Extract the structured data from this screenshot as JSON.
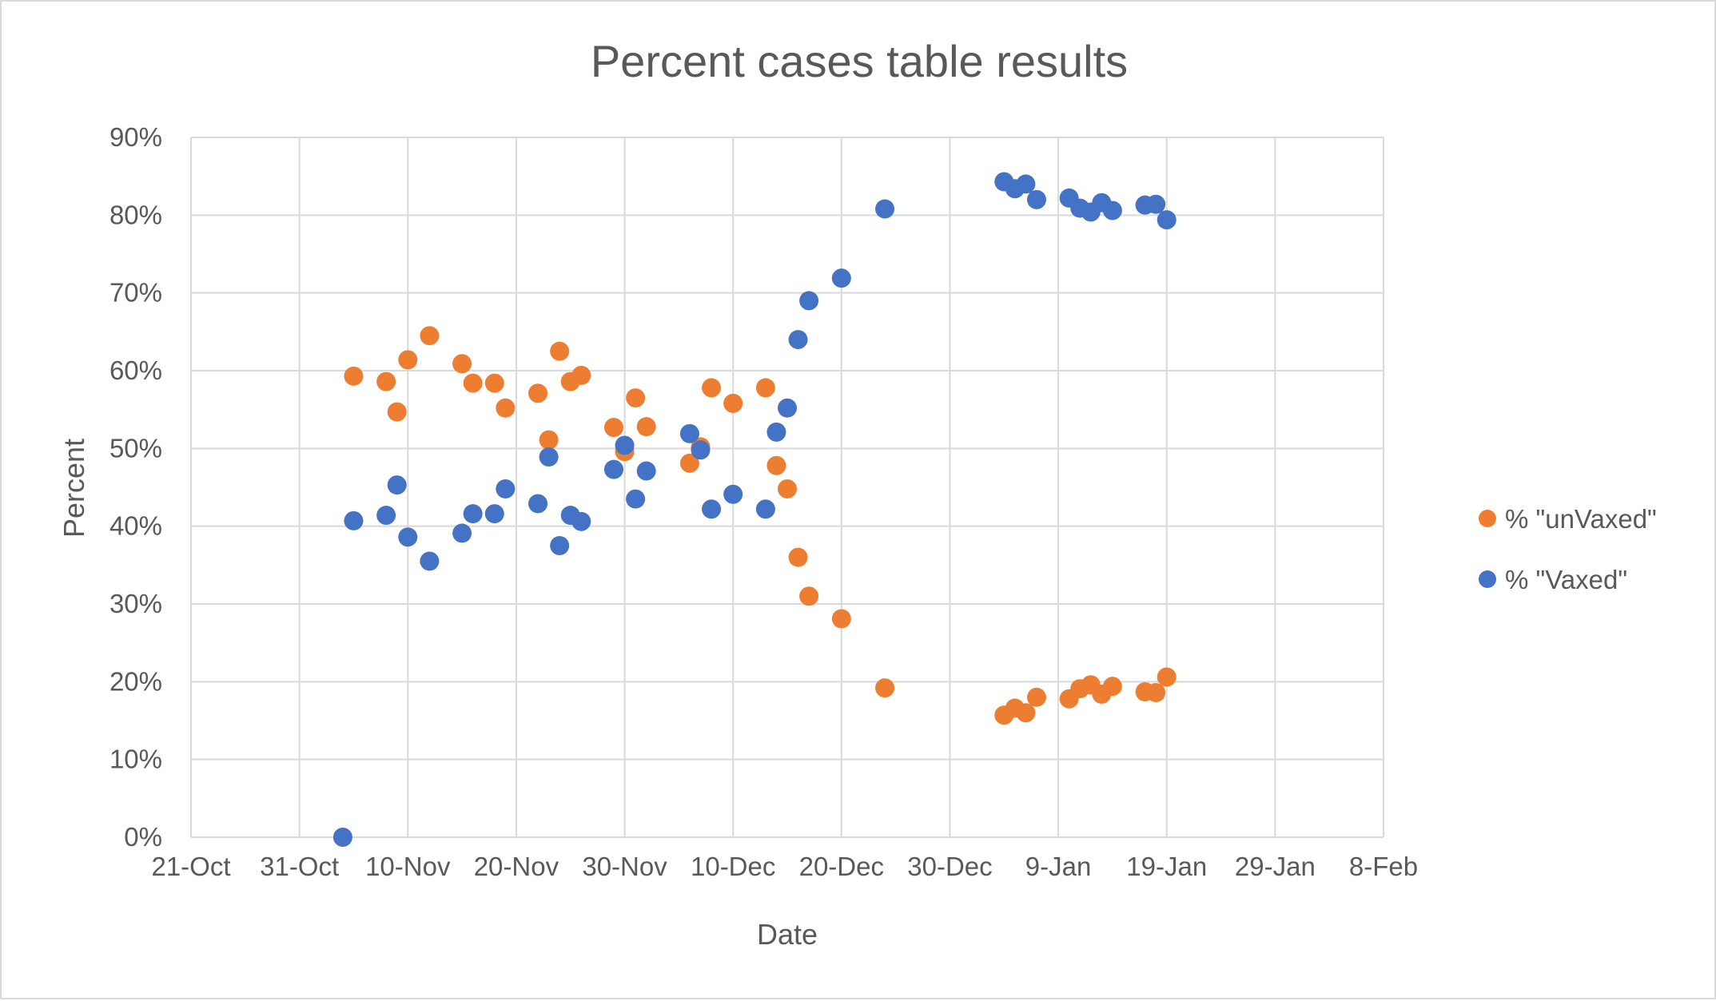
{
  "chart_data": {
    "type": "scatter",
    "title": "Percent cases table results",
    "xlabel": "Date",
    "ylabel": "Percent",
    "x_axis": {
      "kind": "date",
      "min": "2021-10-21",
      "max": "2022-02-08",
      "major_unit_days": 10,
      "tick_labels": [
        "21-Oct",
        "31-Oct",
        "10-Nov",
        "20-Nov",
        "30-Nov",
        "10-Dec",
        "20-Dec",
        "30-Dec",
        "9-Jan",
        "19-Jan",
        "29-Jan",
        "8-Feb"
      ]
    },
    "y_axis": {
      "min": 0,
      "max": 90,
      "major_unit": 10,
      "tick_labels": [
        "0%",
        "10%",
        "20%",
        "30%",
        "40%",
        "50%",
        "60%",
        "70%",
        "80%",
        "90%"
      ]
    },
    "grid": true,
    "legend_position": "right",
    "series": [
      {
        "name": "% \"unVaxed\"",
        "color": "#ED7D31",
        "points": [
          [
            "2021-11-05",
            59.3
          ],
          [
            "2021-11-08",
            58.6
          ],
          [
            "2021-11-09",
            54.7
          ],
          [
            "2021-11-10",
            61.4
          ],
          [
            "2021-11-12",
            64.5
          ],
          [
            "2021-11-15",
            60.9
          ],
          [
            "2021-11-16",
            58.4
          ],
          [
            "2021-11-18",
            58.4
          ],
          [
            "2021-11-19",
            55.2
          ],
          [
            "2021-11-22",
            57.1
          ],
          [
            "2021-11-23",
            51.1
          ],
          [
            "2021-11-24",
            62.5
          ],
          [
            "2021-11-25",
            58.6
          ],
          [
            "2021-11-26",
            59.4
          ],
          [
            "2021-11-29",
            52.7
          ],
          [
            "2021-11-30",
            49.6
          ],
          [
            "2021-12-01",
            56.5
          ],
          [
            "2021-12-02",
            52.8
          ],
          [
            "2021-12-06",
            48.1
          ],
          [
            "2021-12-07",
            50.2
          ],
          [
            "2021-12-08",
            57.8
          ],
          [
            "2021-12-10",
            55.8
          ],
          [
            "2021-12-13",
            57.8
          ],
          [
            "2021-12-14",
            47.8
          ],
          [
            "2021-12-15",
            44.8
          ],
          [
            "2021-12-16",
            36.0
          ],
          [
            "2021-12-17",
            31.0
          ],
          [
            "2021-12-20",
            28.1
          ],
          [
            "2021-12-24",
            19.2
          ],
          [
            "2022-01-04",
            15.7
          ],
          [
            "2022-01-05",
            16.6
          ],
          [
            "2022-01-06",
            16.0
          ],
          [
            "2022-01-07",
            18.0
          ],
          [
            "2022-01-10",
            17.8
          ],
          [
            "2022-01-11",
            19.1
          ],
          [
            "2022-01-12",
            19.6
          ],
          [
            "2022-01-13",
            18.4
          ],
          [
            "2022-01-14",
            19.4
          ],
          [
            "2022-01-17",
            18.7
          ],
          [
            "2022-01-18",
            18.6
          ],
          [
            "2022-01-19",
            20.6
          ]
        ]
      },
      {
        "name": "% \"Vaxed\"",
        "color": "#4472C4",
        "points": [
          [
            "2021-11-04",
            0.0
          ],
          [
            "2021-11-05",
            40.7
          ],
          [
            "2021-11-08",
            41.4
          ],
          [
            "2021-11-09",
            45.3
          ],
          [
            "2021-11-10",
            38.6
          ],
          [
            "2021-11-12",
            35.5
          ],
          [
            "2021-11-15",
            39.1
          ],
          [
            "2021-11-16",
            41.6
          ],
          [
            "2021-11-18",
            41.6
          ],
          [
            "2021-11-19",
            44.8
          ],
          [
            "2021-11-22",
            42.9
          ],
          [
            "2021-11-23",
            48.9
          ],
          [
            "2021-11-24",
            37.5
          ],
          [
            "2021-11-25",
            41.4
          ],
          [
            "2021-11-26",
            40.6
          ],
          [
            "2021-11-29",
            47.3
          ],
          [
            "2021-11-30",
            50.4
          ],
          [
            "2021-12-01",
            43.5
          ],
          [
            "2021-12-02",
            47.1
          ],
          [
            "2021-12-06",
            51.9
          ],
          [
            "2021-12-07",
            49.8
          ],
          [
            "2021-12-08",
            42.2
          ],
          [
            "2021-12-10",
            44.1
          ],
          [
            "2021-12-13",
            42.2
          ],
          [
            "2021-12-14",
            52.1
          ],
          [
            "2021-12-15",
            55.2
          ],
          [
            "2021-12-16",
            64.0
          ],
          [
            "2021-12-17",
            69.0
          ],
          [
            "2021-12-20",
            71.9
          ],
          [
            "2021-12-24",
            80.8
          ],
          [
            "2022-01-04",
            84.3
          ],
          [
            "2022-01-05",
            83.4
          ],
          [
            "2022-01-06",
            84.0
          ],
          [
            "2022-01-07",
            82.0
          ],
          [
            "2022-01-10",
            82.2
          ],
          [
            "2022-01-11",
            80.9
          ],
          [
            "2022-01-12",
            80.4
          ],
          [
            "2022-01-13",
            81.6
          ],
          [
            "2022-01-14",
            80.6
          ],
          [
            "2022-01-17",
            81.3
          ],
          [
            "2022-01-18",
            81.4
          ],
          [
            "2022-01-19",
            79.4
          ]
        ]
      }
    ]
  }
}
